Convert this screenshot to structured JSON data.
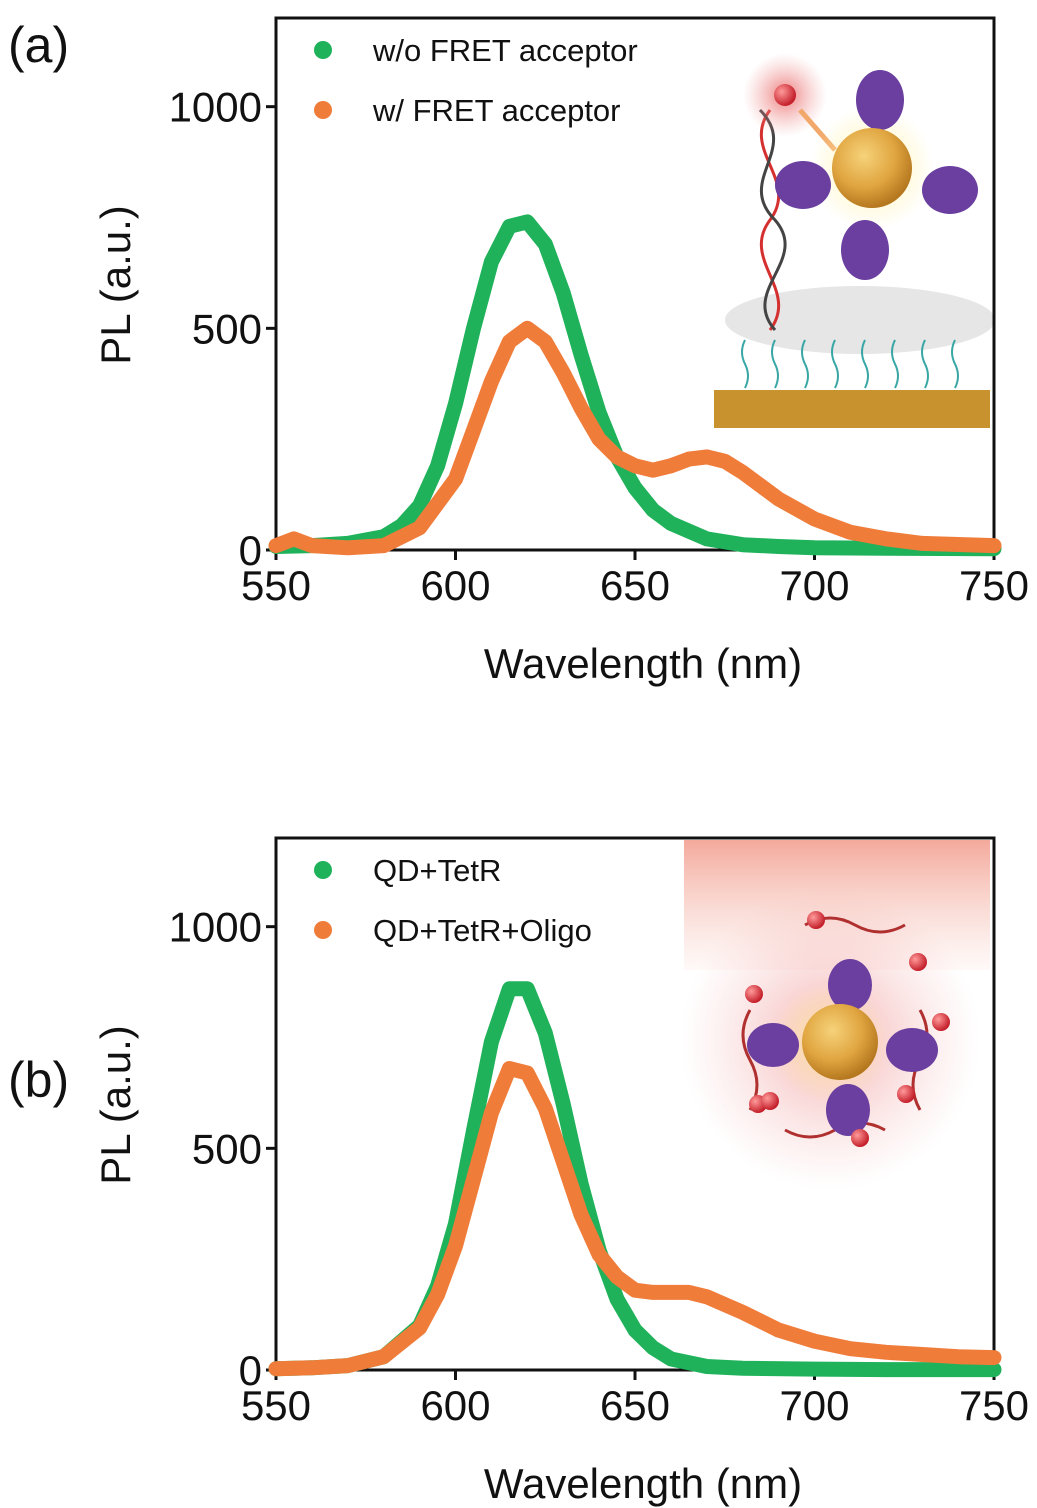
{
  "colors": {
    "green": "#1fb25a",
    "orange": "#f07c3a"
  },
  "chart_data": [
    {
      "type": "line",
      "panel_label": "(a)",
      "xlabel": "Wavelength (nm)",
      "ylabel": "PL (a.u.)",
      "xlim": [
        550,
        750
      ],
      "ylim": [
        0,
        1200
      ],
      "xticks": [
        550,
        600,
        650,
        700,
        750
      ],
      "yticks": [
        0,
        500,
        1000
      ],
      "grid": false,
      "legend": "top-left",
      "inset": "schematic illustration: quantum dot with TetR proteins and DNA strands with FRET acceptor above a surface",
      "series": [
        {
          "name": "w/o FRET acceptor",
          "color": "green",
          "x": [
            550,
            560,
            570,
            580,
            585,
            590,
            595,
            600,
            605,
            610,
            615,
            620,
            625,
            630,
            635,
            640,
            645,
            650,
            655,
            660,
            670,
            680,
            690,
            700,
            720,
            750
          ],
          "values": [
            8,
            10,
            15,
            30,
            55,
            100,
            190,
            330,
            500,
            650,
            730,
            740,
            690,
            580,
            440,
            310,
            210,
            140,
            90,
            60,
            25,
            12,
            8,
            5,
            4,
            3
          ]
        },
        {
          "name": "w/ FRET acceptor",
          "color": "orange",
          "x": [
            550,
            555,
            560,
            570,
            580,
            590,
            600,
            605,
            610,
            615,
            620,
            625,
            630,
            635,
            640,
            645,
            650,
            655,
            660,
            665,
            670,
            675,
            680,
            685,
            690,
            700,
            710,
            720,
            730,
            750
          ],
          "values": [
            10,
            25,
            10,
            5,
            10,
            50,
            160,
            270,
            380,
            470,
            500,
            470,
            400,
            320,
            250,
            210,
            190,
            180,
            190,
            205,
            210,
            200,
            175,
            145,
            115,
            70,
            40,
            25,
            15,
            10
          ]
        }
      ]
    },
    {
      "type": "line",
      "panel_label": "(b)",
      "xlabel": "Wavelength (nm)",
      "ylabel": "PL (a.u.)",
      "xlim": [
        550,
        750
      ],
      "ylim": [
        0,
        1200
      ],
      "xticks": [
        550,
        600,
        650,
        700,
        750
      ],
      "yticks": [
        0,
        500,
        1000
      ],
      "grid": false,
      "legend": "top-left",
      "inset": "schematic illustration: quantum dot with TetR proteins bound to oligo DNA with red acceptors",
      "series": [
        {
          "name": "QD+TetR",
          "color": "green",
          "x": [
            550,
            560,
            570,
            580,
            590,
            595,
            600,
            605,
            610,
            615,
            620,
            625,
            630,
            635,
            640,
            645,
            650,
            655,
            660,
            670,
            680,
            700,
            720,
            750
          ],
          "values": [
            3,
            5,
            10,
            30,
            100,
            190,
            330,
            540,
            740,
            860,
            860,
            760,
            600,
            420,
            270,
            160,
            90,
            50,
            25,
            8,
            4,
            2,
            1,
            1
          ]
        },
        {
          "name": "QD+TetR+Oligo",
          "color": "orange",
          "x": [
            550,
            560,
            570,
            580,
            590,
            595,
            600,
            605,
            610,
            615,
            620,
            625,
            630,
            635,
            640,
            645,
            650,
            655,
            660,
            665,
            670,
            680,
            690,
            700,
            710,
            720,
            730,
            740,
            750
          ],
          "values": [
            3,
            5,
            10,
            30,
            95,
            170,
            280,
            430,
            580,
            680,
            670,
            590,
            470,
            350,
            260,
            210,
            180,
            175,
            175,
            175,
            165,
            130,
            90,
            65,
            48,
            40,
            35,
            30,
            28
          ]
        }
      ]
    }
  ]
}
